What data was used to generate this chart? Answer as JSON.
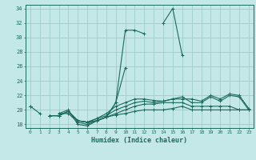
{
  "xlabel": "Humidex (Indice chaleur)",
  "ylabel": "",
  "bg_color": "#c4e8e8",
  "grid_color": "#a0cccc",
  "line_color": "#1a6b5a",
  "xlim": [
    -0.5,
    23.5
  ],
  "ylim": [
    17.5,
    34.5
  ],
  "xticks": [
    0,
    1,
    2,
    3,
    4,
    5,
    6,
    7,
    8,
    9,
    10,
    11,
    12,
    13,
    14,
    15,
    16,
    17,
    18,
    19,
    20,
    21,
    22,
    23
  ],
  "yticks": [
    18,
    20,
    22,
    24,
    26,
    28,
    30,
    32,
    34
  ],
  "series": [
    [
      20.5,
      19.5,
      null,
      19.5,
      19.5,
      18.3,
      18.0,
      18.5,
      19.0,
      21.0,
      31.0,
      31.0,
      30.5,
      null,
      32.0,
      34.0,
      27.5,
      null,
      null,
      null,
      null,
      null,
      null,
      null
    ],
    [
      20.5,
      null,
      null,
      19.5,
      20.0,
      18.0,
      17.8,
      18.5,
      19.0,
      21.0,
      25.8,
      null,
      null,
      null,
      null,
      null,
      null,
      null,
      null,
      null,
      null,
      null,
      null,
      null
    ],
    [
      20.5,
      null,
      19.2,
      19.2,
      19.8,
      18.5,
      18.3,
      18.8,
      19.5,
      20.5,
      21.0,
      21.5,
      21.5,
      21.3,
      21.2,
      21.5,
      21.5,
      21.5,
      21.2,
      22.0,
      21.5,
      22.2,
      22.0,
      20.2
    ],
    [
      20.5,
      null,
      19.2,
      19.2,
      19.8,
      18.5,
      18.3,
      18.8,
      19.2,
      20.0,
      20.5,
      21.0,
      21.2,
      21.0,
      21.2,
      21.5,
      21.8,
      21.0,
      21.0,
      21.8,
      21.2,
      22.0,
      21.8,
      20.0
    ],
    [
      20.5,
      null,
      19.2,
      19.2,
      19.8,
      18.5,
      18.3,
      18.5,
      19.0,
      19.5,
      20.0,
      20.5,
      20.8,
      20.8,
      21.0,
      21.0,
      21.0,
      20.5,
      20.5,
      20.5,
      20.5,
      20.5,
      20.0,
      20.0
    ],
    [
      20.5,
      null,
      19.2,
      19.2,
      19.8,
      18.5,
      18.3,
      18.5,
      19.0,
      19.3,
      19.5,
      19.8,
      20.0,
      20.0,
      20.0,
      20.2,
      20.5,
      20.0,
      20.0,
      20.0,
      20.0,
      20.0,
      20.0,
      20.0
    ]
  ]
}
